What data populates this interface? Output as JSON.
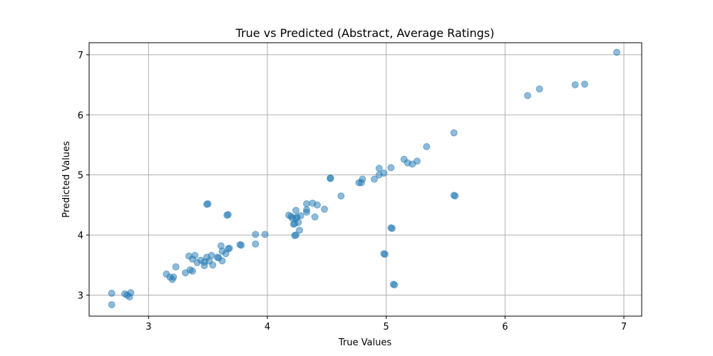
{
  "chart_data": {
    "type": "scatter",
    "title": "True vs Predicted (Abstract, Average Ratings)",
    "xlabel": "True Values",
    "ylabel": "Predicted Values",
    "xlim": [
      2.5,
      7.15
    ],
    "ylim": [
      2.65,
      7.2
    ],
    "xticks": [
      3,
      4,
      5,
      6,
      7
    ],
    "yticks": [
      3,
      4,
      5,
      6,
      7
    ],
    "grid": true,
    "point_color": "#1f77b4",
    "points": [
      [
        2.69,
        3.03
      ],
      [
        2.69,
        2.84
      ],
      [
        2.8,
        3.02
      ],
      [
        2.82,
        3.0
      ],
      [
        2.84,
        2.97
      ],
      [
        2.85,
        3.04
      ],
      [
        3.15,
        3.35
      ],
      [
        3.18,
        3.3
      ],
      [
        3.2,
        3.26
      ],
      [
        3.21,
        3.3
      ],
      [
        3.23,
        3.47
      ],
      [
        3.31,
        3.37
      ],
      [
        3.34,
        3.65
      ],
      [
        3.35,
        3.42
      ],
      [
        3.37,
        3.4
      ],
      [
        3.37,
        3.6
      ],
      [
        3.39,
        3.66
      ],
      [
        3.41,
        3.54
      ],
      [
        3.44,
        3.58
      ],
      [
        3.47,
        3.49
      ],
      [
        3.47,
        3.55
      ],
      [
        3.49,
        3.63
      ],
      [
        3.49,
        4.51
      ],
      [
        3.5,
        4.52
      ],
      [
        3.51,
        3.57
      ],
      [
        3.53,
        3.66
      ],
      [
        3.54,
        3.5
      ],
      [
        3.58,
        3.63
      ],
      [
        3.59,
        3.62
      ],
      [
        3.61,
        3.82
      ],
      [
        3.62,
        3.57
      ],
      [
        3.62,
        3.73
      ],
      [
        3.65,
        3.69
      ],
      [
        3.66,
        4.33
      ],
      [
        3.67,
        4.34
      ],
      [
        3.67,
        3.77
      ],
      [
        3.68,
        3.78
      ],
      [
        3.77,
        3.84
      ],
      [
        3.78,
        3.83
      ],
      [
        3.9,
        4.01
      ],
      [
        3.9,
        3.85
      ],
      [
        3.98,
        4.01
      ],
      [
        4.18,
        4.33
      ],
      [
        4.2,
        4.31
      ],
      [
        4.21,
        4.28
      ],
      [
        4.22,
        4.18
      ],
      [
        4.23,
        4.19
      ],
      [
        4.23,
        3.99
      ],
      [
        4.24,
        4.0
      ],
      [
        4.24,
        4.41
      ],
      [
        4.24,
        4.28
      ],
      [
        4.25,
        4.3
      ],
      [
        4.26,
        4.21
      ],
      [
        4.27,
        4.08
      ],
      [
        4.28,
        4.32
      ],
      [
        4.33,
        4.52
      ],
      [
        4.33,
        4.42
      ],
      [
        4.33,
        4.38
      ],
      [
        4.38,
        4.53
      ],
      [
        4.4,
        4.3
      ],
      [
        4.42,
        4.5
      ],
      [
        4.48,
        4.43
      ],
      [
        4.53,
        4.95
      ],
      [
        4.53,
        4.94
      ],
      [
        4.62,
        4.65
      ],
      [
        4.77,
        4.87
      ],
      [
        4.79,
        4.87
      ],
      [
        4.8,
        4.93
      ],
      [
        4.9,
        4.93
      ],
      [
        4.94,
        5.0
      ],
      [
        4.94,
        5.11
      ],
      [
        4.98,
        5.03
      ],
      [
        4.98,
        3.69
      ],
      [
        4.99,
        3.68
      ],
      [
        5.04,
        5.12
      ],
      [
        5.04,
        4.12
      ],
      [
        5.05,
        4.11
      ],
      [
        5.06,
        3.18
      ],
      [
        5.07,
        3.17
      ],
      [
        5.15,
        5.26
      ],
      [
        5.18,
        5.2
      ],
      [
        5.22,
        5.18
      ],
      [
        5.26,
        5.23
      ],
      [
        5.34,
        5.47
      ],
      [
        5.57,
        5.7
      ],
      [
        5.57,
        4.66
      ],
      [
        5.58,
        4.65
      ],
      [
        6.19,
        6.32
      ],
      [
        6.29,
        6.43
      ],
      [
        6.59,
        6.5
      ],
      [
        6.67,
        6.51
      ],
      [
        6.94,
        7.04
      ]
    ]
  }
}
